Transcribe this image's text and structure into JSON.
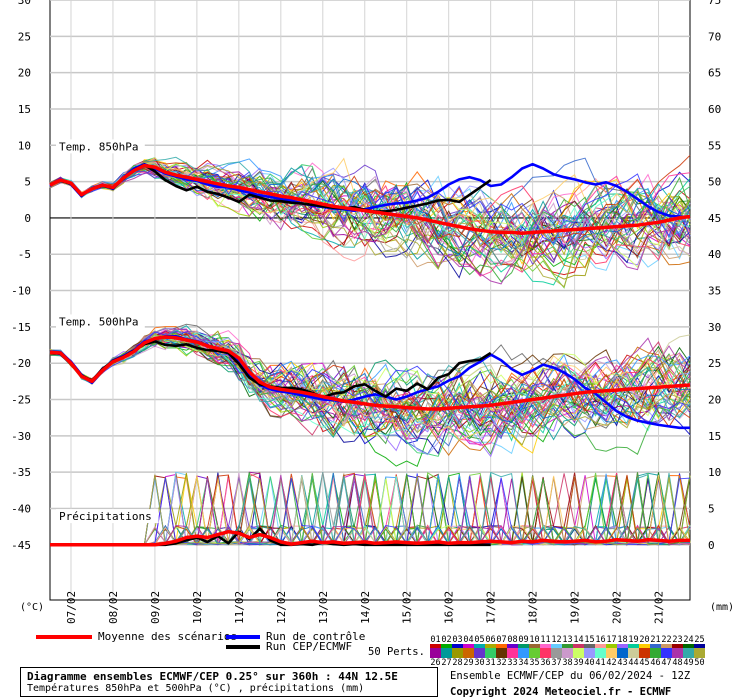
{
  "chart_data": {
    "type": "line",
    "title": "Diagramme ensembles ECMWF/CEP 0.25° sur 360h : 44N 12.5E",
    "subtitle": "Températures 850hPa et 500hPa (°C) , précipitations (mm)",
    "left_axis": {
      "unit": "(°C)",
      "ticks": [
        30,
        25,
        20,
        15,
        10,
        5,
        0,
        -5,
        -10,
        -15,
        -20,
        -25,
        -30,
        -35,
        -40,
        -45
      ],
      "ylim": [
        -52.6,
        30
      ]
    },
    "right_axis": {
      "unit": "(mm)",
      "ticks": [
        75,
        70,
        65,
        60,
        55,
        50,
        45,
        40,
        35,
        30,
        25,
        20,
        15,
        10,
        5,
        0
      ]
    },
    "x_tick_labels": [
      "07/02",
      "08/02",
      "09/02",
      "10/02",
      "11/02",
      "12/02",
      "13/02",
      "14/02",
      "15/02",
      "16/02",
      "17/02",
      "18/02",
      "19/02",
      "20/02",
      "21/02"
    ],
    "x_range_days": [
      6.5,
      21.75
    ],
    "panel_labels": {
      "t850": "Temp. 850hPa",
      "t500": "Temp. 500hPa",
      "precip": "Précipitations"
    },
    "x_days": [
      6.5,
      6.75,
      7.0,
      7.25,
      7.5,
      7.75,
      8.0,
      8.25,
      8.5,
      8.75,
      9.0,
      9.25,
      9.5,
      9.75,
      10.0,
      10.25,
      10.5,
      10.75,
      11.0,
      11.25,
      11.5,
      11.75,
      12.0,
      12.25,
      12.5,
      12.75,
      13.0,
      13.25,
      13.5,
      13.75,
      14.0,
      14.25,
      14.5,
      14.75,
      15.0,
      15.25,
      15.5,
      15.75,
      16.0,
      16.25,
      16.5,
      16.75,
      17.0,
      17.25,
      17.5,
      17.75,
      18.0,
      18.25,
      18.5,
      18.75,
      19.0,
      19.25,
      19.5,
      19.75,
      20.0,
      20.25,
      20.5,
      20.75,
      21.0,
      21.25,
      21.5,
      21.75
    ],
    "series": [
      {
        "name": "Moyenne des scénarios",
        "color": "#ff0000",
        "panel": "t850",
        "values": [
          4.5,
          5.2,
          4.8,
          3.2,
          4.0,
          4.5,
          4.2,
          5.5,
          6.5,
          7.2,
          7.0,
          6.3,
          5.9,
          5.6,
          5.3,
          5.0,
          4.7,
          4.4,
          4.2,
          3.9,
          3.6,
          3.3,
          3.0,
          2.8,
          2.5,
          2.2,
          1.9,
          1.6,
          1.4,
          1.2,
          1.0,
          0.8,
          0.6,
          0.4,
          0.2,
          0.0,
          -0.3,
          -0.6,
          -0.9,
          -1.2,
          -1.5,
          -1.7,
          -1.9,
          -2.0,
          -2.0,
          -2.1,
          -2.0,
          -1.9,
          -1.8,
          -1.7,
          -1.6,
          -1.5,
          -1.4,
          -1.3,
          -1.2,
          -1.1,
          -1.0,
          -0.8,
          -0.6,
          -0.3,
          0.0,
          0.2
        ]
      },
      {
        "name": "Run de contrôle",
        "color": "#0000ff",
        "panel": "t850",
        "values": [
          4.4,
          5.3,
          4.6,
          3.0,
          4.1,
          4.6,
          4.0,
          5.6,
          6.8,
          7.4,
          6.8,
          6.1,
          5.7,
          5.3,
          5.1,
          4.6,
          4.3,
          4.2,
          3.8,
          3.5,
          3.1,
          2.9,
          2.6,
          2.4,
          2.0,
          1.7,
          1.5,
          1.3,
          1.2,
          1.0,
          1.2,
          1.5,
          1.8,
          2.0,
          2.1,
          2.4,
          2.8,
          3.6,
          4.6,
          5.3,
          5.6,
          5.2,
          4.4,
          4.6,
          5.6,
          6.8,
          7.4,
          6.8,
          6.0,
          5.6,
          5.3,
          4.9,
          4.6,
          4.9,
          4.4,
          3.6,
          2.6,
          1.6,
          0.8,
          0.3,
          0.2,
          0.1
        ]
      },
      {
        "name": "Run CEP/ECMWF",
        "color": "#000000",
        "panel": "t850",
        "values": [
          4.6,
          5.1,
          4.7,
          3.1,
          4.0,
          4.4,
          4.1,
          5.4,
          6.6,
          7.3,
          6.4,
          5.2,
          4.4,
          3.8,
          4.3,
          3.6,
          3.3,
          2.8,
          2.2,
          3.2,
          2.8,
          2.4,
          2.3,
          2.1,
          2.0,
          1.8,
          1.6,
          1.4,
          1.3,
          1.5,
          1.1,
          0.9,
          0.9,
          1.1,
          1.4,
          1.7,
          2.0,
          2.4,
          2.5,
          2.2,
          3.2,
          4.2,
          5.2
        ]
      },
      {
        "name": "Moyenne des scénarios",
        "color": "#ff0000",
        "panel": "t500",
        "values": [
          -18.5,
          -18.6,
          -20.0,
          -21.8,
          -22.5,
          -21.0,
          -19.8,
          -19.2,
          -18.4,
          -17.2,
          -16.6,
          -16.4,
          -16.5,
          -16.8,
          -17.1,
          -17.6,
          -18.0,
          -18.3,
          -19.3,
          -21.2,
          -22.6,
          -23.3,
          -23.6,
          -23.8,
          -24.0,
          -24.3,
          -24.6,
          -24.9,
          -25.2,
          -25.4,
          -25.6,
          -25.8,
          -25.9,
          -26.0,
          -26.1,
          -26.2,
          -26.3,
          -26.3,
          -26.2,
          -26.1,
          -26.0,
          -25.9,
          -25.8,
          -25.6,
          -25.4,
          -25.2,
          -25.0,
          -24.8,
          -24.6,
          -24.4,
          -24.2,
          -24.0,
          -23.9,
          -23.8,
          -23.7,
          -23.6,
          -23.5,
          -23.4,
          -23.3,
          -23.2,
          -23.1,
          -23.0
        ]
      },
      {
        "name": "Run de contrôle",
        "color": "#0000ff",
        "panel": "t500",
        "values": [
          -18.4,
          -18.5,
          -19.8,
          -21.6,
          -22.7,
          -21.1,
          -19.6,
          -19.0,
          -18.2,
          -17.0,
          -16.7,
          -16.3,
          -16.3,
          -16.7,
          -17.0,
          -17.5,
          -18.3,
          -18.6,
          -19.6,
          -21.6,
          -23.0,
          -23.6,
          -23.9,
          -24.1,
          -24.4,
          -24.7,
          -25.0,
          -25.1,
          -25.3,
          -25.0,
          -24.6,
          -24.3,
          -24.6,
          -25.0,
          -24.6,
          -24.0,
          -23.6,
          -23.2,
          -22.4,
          -21.8,
          -20.6,
          -19.8,
          -18.8,
          -19.6,
          -20.8,
          -21.6,
          -21.0,
          -20.2,
          -20.6,
          -21.3,
          -22.2,
          -23.4,
          -24.2,
          -25.4,
          -26.6,
          -27.4,
          -27.9,
          -28.2,
          -28.5,
          -28.7,
          -28.9,
          -28.9
        ]
      },
      {
        "name": "Run CEP/ECMWF",
        "color": "#000000",
        "panel": "t500",
        "values": [
          -18.5,
          -18.7,
          -20.1,
          -21.7,
          -22.4,
          -20.8,
          -19.7,
          -19.1,
          -18.3,
          -17.4,
          -17.0,
          -17.5,
          -17.6,
          -17.4,
          -17.9,
          -18.2,
          -18.3,
          -18.6,
          -20.1,
          -22.0,
          -22.9,
          -23.2,
          -23.4,
          -23.4,
          -23.6,
          -24.1,
          -24.7,
          -24.2,
          -24.0,
          -23.2,
          -22.9,
          -23.8,
          -24.6,
          -23.5,
          -23.8,
          -22.8,
          -23.6,
          -22.0,
          -21.5,
          -20.0,
          -19.7,
          -19.5,
          -18.6
        ]
      },
      {
        "name": "Moyenne des scénarios",
        "color": "#ff0000",
        "panel": "precip",
        "values": [
          0.0,
          0.0,
          0.0,
          0.0,
          0.0,
          0.0,
          0.0,
          0.0,
          0.0,
          0.0,
          0.0,
          0.2,
          0.5,
          1.0,
          1.2,
          1.0,
          1.4,
          1.8,
          1.6,
          1.0,
          1.4,
          1.0,
          0.4,
          0.1,
          0.3,
          0.5,
          0.3,
          0.4,
          0.2,
          0.3,
          0.4,
          0.2,
          0.3,
          0.4,
          0.3,
          0.2,
          0.3,
          0.4,
          0.2,
          0.3,
          0.3,
          0.4,
          0.5,
          0.4,
          0.3,
          0.5,
          0.4,
          0.6,
          0.5,
          0.4,
          0.5,
          0.6,
          0.4,
          0.5,
          0.7,
          0.6,
          0.5,
          0.7,
          0.6,
          0.5,
          0.6,
          0.6
        ]
      },
      {
        "name": "Run CEP/ECMWF",
        "color": "#000000",
        "panel": "precip",
        "values": [
          0.0,
          0.0,
          0.0,
          0.0,
          0.0,
          0.0,
          0.0,
          0.0,
          0.0,
          0.0,
          0.0,
          0.0,
          0.2,
          0.6,
          1.0,
          0.4,
          1.2,
          0.2,
          1.8,
          0.8,
          2.2,
          0.6,
          0.0,
          0.0,
          0.1,
          0.0,
          0.3,
          0.1,
          0.0,
          0.1,
          0.0,
          0.0,
          0.0,
          0.0,
          0.0,
          0.0,
          0.0,
          0.0,
          0.0,
          0.0,
          0.0,
          0.0,
          0.0
        ]
      }
    ],
    "perturbation_count": 50,
    "perturbation_palette": [
      "#cc0000",
      "#00aa00",
      "#0000cc",
      "#cc00cc",
      "#00aaaa",
      "#aaaa00",
      "#ff6600",
      "#6600cc",
      "#009966",
      "#996633",
      "#ff66cc",
      "#66ccff",
      "#339933",
      "#cc3366",
      "#666666",
      "#ff9999",
      "#99cc00",
      "#9966ff",
      "#00cc99",
      "#ffcc00",
      "#3366cc",
      "#cc9966",
      "#990000",
      "#006600",
      "#000099",
      "#990099",
      "#009999",
      "#999900",
      "#cc6600",
      "#6633cc",
      "#33cc66",
      "#663300",
      "#ff3399",
      "#3399ff",
      "#66cc33",
      "#ff3366",
      "#999999",
      "#cc99cc",
      "#ccff66",
      "#9999ff",
      "#66ffcc",
      "#ffcc66",
      "#0066cc",
      "#cccc99",
      "#cc3300",
      "#33aa33",
      "#3333ff",
      "#aa33aa",
      "#33aaaa",
      "#aaaa33"
    ]
  },
  "legend": {
    "mean_label": "Moyenne des scénarios",
    "control_label": "Run de contrôle",
    "oper_label": "Run CEP/ECMWF",
    "perts_label": "50 Perts.",
    "pert_ids_top": [
      "01",
      "02",
      "03",
      "04",
      "05",
      "06",
      "07",
      "08",
      "09",
      "10",
      "11",
      "12",
      "13",
      "14",
      "15",
      "16",
      "17",
      "18",
      "19",
      "20",
      "21",
      "22",
      "23",
      "24",
      "25"
    ],
    "pert_ids_bottom": [
      "26",
      "27",
      "28",
      "29",
      "30",
      "31",
      "32",
      "33",
      "34",
      "35",
      "36",
      "37",
      "38",
      "39",
      "40",
      "41",
      "42",
      "43",
      "44",
      "45",
      "46",
      "47",
      "48",
      "49",
      "50"
    ]
  },
  "footer": {
    "title": "Diagramme ensembles ECMWF/CEP 0.25° sur 360h : 44N 12.5E",
    "subtitle": "Températures 850hPa et 500hPa (°C) , précipitations (mm)",
    "run_info": "Ensemble ECMWF/CEP du 06/02/2024 - 12Z",
    "copyright": "Copyright 2024 Meteociel.fr - ECMWF"
  }
}
